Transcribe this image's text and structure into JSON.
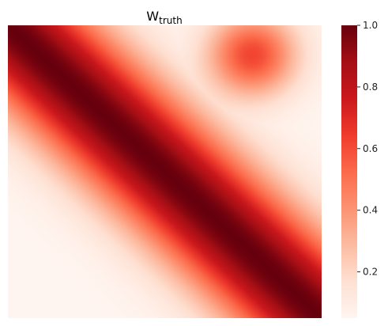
{
  "chart_data": {
    "type": "heatmap",
    "title": "W",
    "title_subscript": "truth",
    "xlabel": "",
    "ylabel": "",
    "colormap": "Reds",
    "colormap_stops": [
      "#fff5f0",
      "#fee0d2",
      "#fcbba1",
      "#fc9272",
      "#fb6a4a",
      "#ef3b2c",
      "#cb181d",
      "#a50f15",
      "#67000d"
    ],
    "value_range": [
      0.05,
      1.0
    ],
    "colorbar_ticks": [
      0.2,
      0.4,
      0.6,
      0.8,
      1.0
    ],
    "colorbar_tick_labels": [
      "0.2",
      "0.4",
      "0.6",
      "0.8",
      "1.0"
    ],
    "field": {
      "description_of_pattern": "Gaussian kernel along the main diagonal plus a Gaussian bump near the top-right",
      "diagonal_bandwidth": 0.2,
      "bump_center": [
        0.78,
        0.1
      ],
      "bump_bandwidth": 0.1,
      "bump_amplitude": 0.6
    },
    "grid": false,
    "legend": "colorbar-right"
  }
}
